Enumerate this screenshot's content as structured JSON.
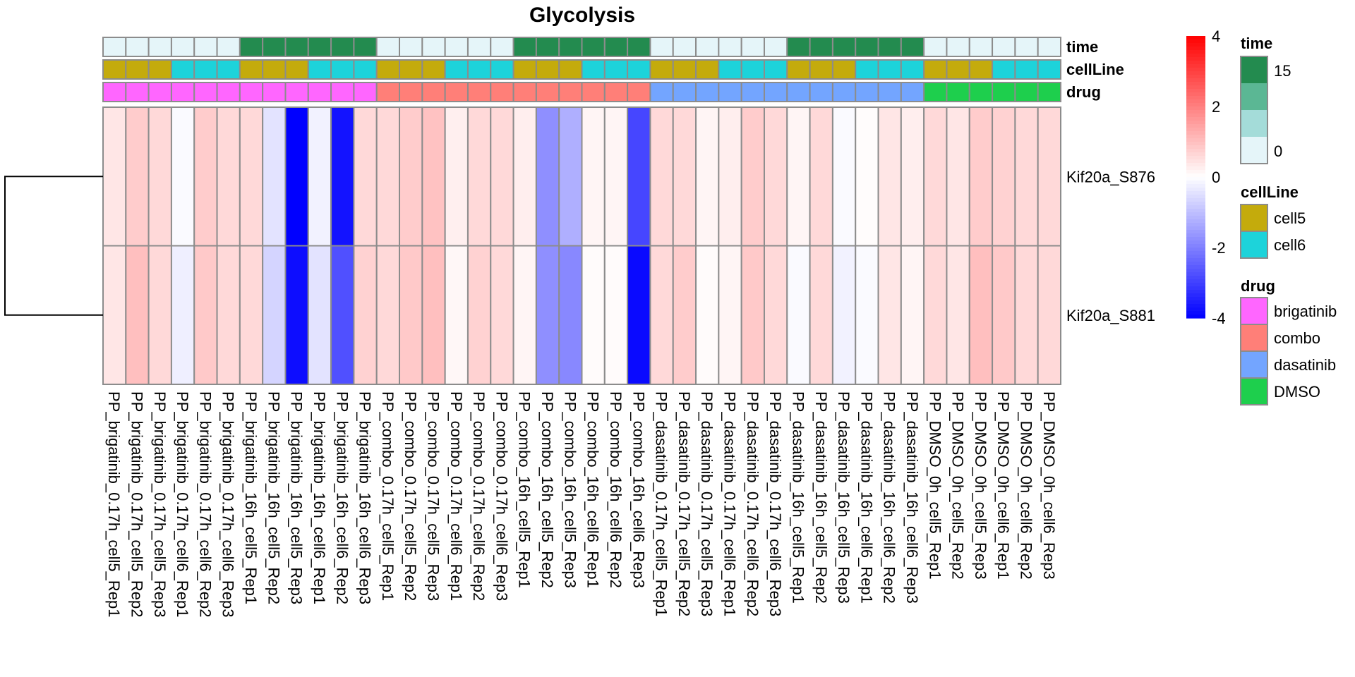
{
  "chart_data": {
    "type": "heatmap",
    "title": "Glycolysis",
    "rows": [
      "Kif20a_S876",
      "Kif20a_S881"
    ],
    "columns": [
      "PP_brigatinib_0.17h_cell5_Rep1",
      "PP_brigatinib_0.17h_cell5_Rep2",
      "PP_brigatinib_0.17h_cell5_Rep3",
      "PP_brigatinib_0.17h_cell6_Rep1",
      "PP_brigatinib_0.17h_cell6_Rep2",
      "PP_brigatinib_0.17h_cell6_Rep3",
      "PP_brigatinib_16h_cell5_Rep1",
      "PP_brigatinib_16h_cell5_Rep2",
      "PP_brigatinib_16h_cell5_Rep3",
      "PP_brigatinib_16h_cell6_Rep1",
      "PP_brigatinib_16h_cell6_Rep2",
      "PP_brigatinib_16h_cell6_Rep3",
      "PP_combo_0.17h_cell5_Rep1",
      "PP_combo_0.17h_cell5_Rep2",
      "PP_combo_0.17h_cell5_Rep3",
      "PP_combo_0.17h_cell6_Rep1",
      "PP_combo_0.17h_cell6_Rep2",
      "PP_combo_0.17h_cell6_Rep3",
      "PP_combo_16h_cell5_Rep1",
      "PP_combo_16h_cell5_Rep2",
      "PP_combo_16h_cell5_Rep3",
      "PP_combo_16h_cell6_Rep1",
      "PP_combo_16h_cell6_Rep2",
      "PP_combo_16h_cell6_Rep3",
      "PP_dasatinib_0.17h_cell5_Rep1",
      "PP_dasatinib_0.17h_cell5_Rep2",
      "PP_dasatinib_0.17h_cell5_Rep3",
      "PP_dasatinib_0.17h_cell6_Rep1",
      "PP_dasatinib_0.17h_cell6_Rep2",
      "PP_dasatinib_0.17h_cell6_Rep3",
      "PP_dasatinib_16h_cell5_Rep1",
      "PP_dasatinib_16h_cell5_Rep2",
      "PP_dasatinib_16h_cell5_Rep3",
      "PP_dasatinib_16h_cell6_Rep1",
      "PP_dasatinib_16h_cell6_Rep2",
      "PP_dasatinib_16h_cell6_Rep3",
      "PP_DMSO_0h_cell5_Rep1",
      "PP_DMSO_0h_cell5_Rep2",
      "PP_DMSO_0h_cell5_Rep3",
      "PP_DMSO_0h_cell6_Rep1",
      "PP_DMSO_0h_cell6_Rep2",
      "PP_DMSO_0h_cell6_Rep3"
    ],
    "values": [
      [
        0.4,
        0.8,
        0.6,
        -0.08,
        0.8,
        0.6,
        0.6,
        -0.44,
        -4.0,
        -0.2,
        -3.7,
        0.6,
        0.6,
        0.8,
        0.95,
        0.25,
        0.6,
        0.6,
        0.27,
        -1.75,
        -1.25,
        0.15,
        0.15,
        -2.9,
        0.6,
        0.6,
        0.15,
        0.27,
        0.8,
        0.6,
        0.15,
        0.6,
        -0.08,
        0.05,
        0.4,
        0.27,
        0.6,
        0.4,
        0.8,
        0.7,
        0.6,
        0.6
      ],
      [
        0.4,
        1.0,
        0.6,
        -0.25,
        0.85,
        0.6,
        0.6,
        -0.67,
        -3.8,
        -0.44,
        -2.75,
        0.7,
        0.6,
        0.85,
        1.0,
        0.12,
        0.7,
        0.6,
        0.15,
        -1.75,
        -1.87,
        0.06,
        0.06,
        -3.85,
        0.6,
        0.8,
        0.06,
        0.15,
        0.85,
        0.6,
        -0.08,
        0.6,
        -0.2,
        -0.08,
        0.4,
        0.15,
        0.6,
        0.4,
        1.0,
        0.85,
        0.6,
        0.6
      ]
    ],
    "annotations": {
      "time": [
        0,
        0,
        0,
        0,
        0,
        0,
        16,
        16,
        16,
        16,
        16,
        16,
        0,
        0,
        0,
        0,
        0,
        0,
        16,
        16,
        16,
        16,
        16,
        16,
        0,
        0,
        0,
        0,
        0,
        0,
        16,
        16,
        16,
        16,
        16,
        16,
        0,
        0,
        0,
        0,
        0,
        0
      ],
      "cellLine": [
        "cell5",
        "cell5",
        "cell5",
        "cell6",
        "cell6",
        "cell6",
        "cell5",
        "cell5",
        "cell5",
        "cell6",
        "cell6",
        "cell6",
        "cell5",
        "cell5",
        "cell5",
        "cell6",
        "cell6",
        "cell6",
        "cell5",
        "cell5",
        "cell5",
        "cell6",
        "cell6",
        "cell6",
        "cell5",
        "cell5",
        "cell5",
        "cell6",
        "cell6",
        "cell6",
        "cell5",
        "cell5",
        "cell5",
        "cell6",
        "cell6",
        "cell6",
        "cell5",
        "cell5",
        "cell5",
        "cell6",
        "cell6",
        "cell6"
      ],
      "drug": [
        "brigatinib",
        "brigatinib",
        "brigatinib",
        "brigatinib",
        "brigatinib",
        "brigatinib",
        "brigatinib",
        "brigatinib",
        "brigatinib",
        "brigatinib",
        "brigatinib",
        "brigatinib",
        "combo",
        "combo",
        "combo",
        "combo",
        "combo",
        "combo",
        "combo",
        "combo",
        "combo",
        "combo",
        "combo",
        "combo",
        "dasatinib",
        "dasatinib",
        "dasatinib",
        "dasatinib",
        "dasatinib",
        "dasatinib",
        "dasatinib",
        "dasatinib",
        "dasatinib",
        "dasatinib",
        "dasatinib",
        "dasatinib",
        "DMSO",
        "DMSO",
        "DMSO",
        "DMSO",
        "DMSO",
        "DMSO"
      ]
    },
    "annotation_labels": [
      "time",
      "cellLine",
      "drug"
    ],
    "color_scale": {
      "min": -4,
      "max": 4,
      "low": "#0000FF",
      "mid": "#FFFFFF",
      "high": "#FF0000",
      "ticks": [
        "4",
        "2",
        "0",
        "-2",
        "-4"
      ]
    },
    "legends": {
      "time": {
        "title": "time",
        "max_label": "15",
        "min_label": "0",
        "steps": [
          "#238B4F",
          "#5BB794",
          "#A4DCD9",
          "#E5F5F9"
        ]
      },
      "cellLine": {
        "title": "cellLine",
        "items": [
          {
            "label": "cell5",
            "color": "#C4AB0C"
          },
          {
            "label": "cell6",
            "color": "#1DD3DA"
          }
        ]
      },
      "drug": {
        "title": "drug",
        "items": [
          {
            "label": "brigatinib",
            "color": "#FF66FF"
          },
          {
            "label": "combo",
            "color": "#FF7F78"
          },
          {
            "label": "dasatinib",
            "color": "#73A5FF"
          },
          {
            "label": "DMSO",
            "color": "#1ECF4D"
          }
        ]
      }
    },
    "time_colors": {
      "0": "#E5F5F9",
      "16": "#238B4F"
    },
    "row_dendrogram": true,
    "grid": true
  }
}
